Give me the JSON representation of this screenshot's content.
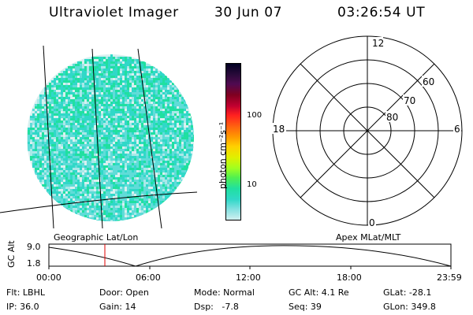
{
  "header": {
    "instrument": "Ultraviolet Imager",
    "date": "30 Jun 07",
    "time": "03:26:54 UT"
  },
  "colorbar": {
    "unit_text": "photon cm⁻²s⁻¹",
    "tick_labels": [
      "100",
      "10"
    ],
    "colors": [
      "#000022",
      "#2a0a3a",
      "#500a50",
      "#800020",
      "#c00030",
      "#ff2020",
      "#ff6010",
      "#ff9a00",
      "#ffd000",
      "#e0f000",
      "#a0ff20",
      "#50f050",
      "#20e0a0",
      "#30d8c8",
      "#80e0e0",
      "#d0f0f0"
    ]
  },
  "polar": {
    "mlt_labels": {
      "top": "12",
      "left": "18",
      "right": "6",
      "bottom": "0"
    },
    "lat_labels": [
      "60",
      "70",
      "80"
    ]
  },
  "orbit": {
    "left_title": "Geographic Lat/Lon",
    "right_title": "Apex MLat/MLT",
    "y_axis_label": "GC Alt",
    "y_ticks": [
      "9.0",
      "1.8"
    ],
    "x_ticks": [
      "00:00",
      "06:00",
      "12:00",
      "18:00",
      "23:59"
    ]
  },
  "info": {
    "filter": "Flt: LBHL",
    "ip": "IP: 36.0",
    "door": "Door: Open",
    "gain": "Gain: 14",
    "mode": "Mode: Normal",
    "dsp": "Dsp:   -7.8",
    "gc_alt": "GC Alt: 4.1 Re",
    "seq": "Seq: 39",
    "glat": "GLat: -28.1",
    "glon": "GLon: 349.8"
  }
}
